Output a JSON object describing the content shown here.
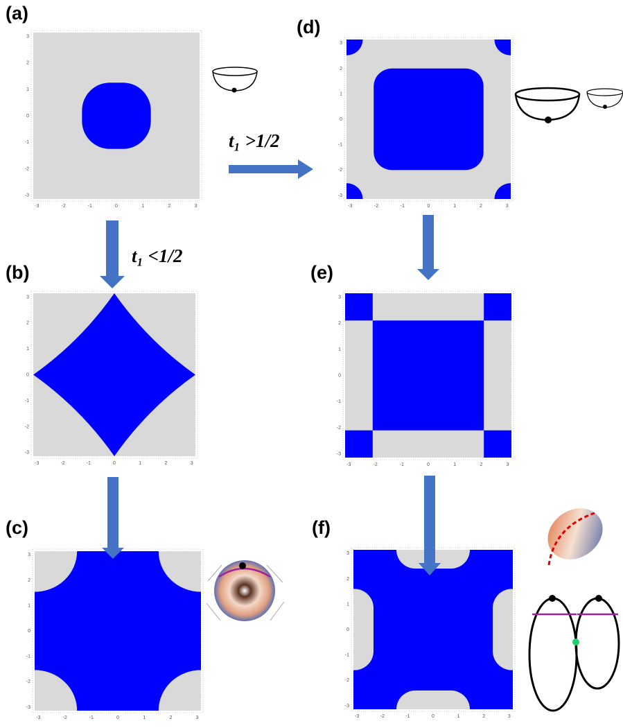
{
  "panels": [
    {
      "label": "(a)"
    },
    {
      "label": "(b)"
    },
    {
      "label": "(c)"
    },
    {
      "label": "(d)"
    },
    {
      "label": "(e)"
    },
    {
      "label": "(f)"
    }
  ],
  "arrows": [
    {
      "label": "t₁ >1/2"
    },
    {
      "label": "t₁ <1/2"
    }
  ],
  "axis_ticks": [
    "-3",
    "-2",
    "-1",
    "0",
    "1",
    "2",
    "3"
  ]
}
